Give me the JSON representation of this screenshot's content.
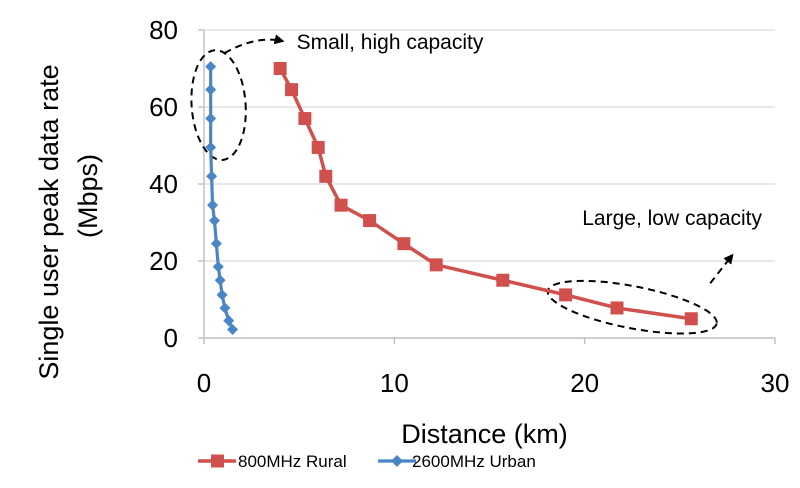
{
  "chart_data": {
    "type": "line",
    "title": "",
    "xlabel": "Distance (km)",
    "ylabel_lines": [
      "Single user peak data rate",
      "(Mbps)"
    ],
    "xlim": [
      0,
      30
    ],
    "ylim": [
      0,
      80
    ],
    "xticks": [
      0,
      10,
      20,
      30
    ],
    "yticks": [
      0,
      20,
      40,
      60,
      80
    ],
    "grid": "horizontal",
    "legend_position": "bottom",
    "series": [
      {
        "name": "800MHz Rural",
        "color": "#d0504d",
        "marker": "square",
        "points": [
          [
            4.0,
            70
          ],
          [
            4.6,
            64.5
          ],
          [
            5.3,
            57
          ],
          [
            6.0,
            49.5
          ],
          [
            6.4,
            42
          ],
          [
            7.2,
            34.5
          ],
          [
            8.7,
            30.5
          ],
          [
            10.5,
            24.5
          ],
          [
            12.2,
            19
          ],
          [
            15.7,
            15
          ],
          [
            19.0,
            11.2
          ],
          [
            21.7,
            7.8
          ],
          [
            25.6,
            5
          ]
        ]
      },
      {
        "name": "2600MHz Urban",
        "color": "#4a86c5",
        "marker": "diamond",
        "points": [
          [
            0.35,
            70.5
          ],
          [
            0.35,
            64.5
          ],
          [
            0.35,
            57
          ],
          [
            0.35,
            49.5
          ],
          [
            0.4,
            42
          ],
          [
            0.45,
            34.5
          ],
          [
            0.55,
            30.5
          ],
          [
            0.65,
            24.5
          ],
          [
            0.75,
            18.5
          ],
          [
            0.85,
            15
          ],
          [
            0.95,
            11.2
          ],
          [
            1.1,
            7.8
          ],
          [
            1.3,
            4.5
          ],
          [
            1.5,
            2.2
          ]
        ]
      }
    ],
    "annotations": [
      {
        "text": "Small, high capacity",
        "anchor_x": 0.4,
        "anchor_y": 60.5
      },
      {
        "text": "Large, low capacity",
        "anchor_x": 22.5,
        "anchor_y": 8
      }
    ]
  }
}
